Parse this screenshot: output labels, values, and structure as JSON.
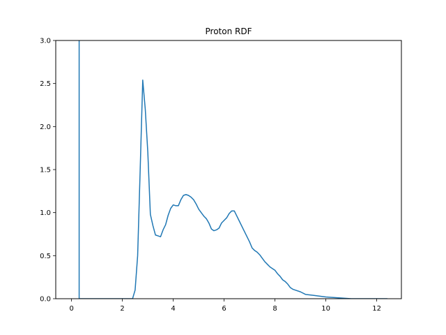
{
  "chart_data": {
    "type": "line",
    "title": "Proton RDF",
    "xlabel": "",
    "ylabel": "",
    "xlim": [
      -0.62,
      12.97
    ],
    "ylim": [
      0,
      3.0
    ],
    "xticks": [
      0,
      2,
      4,
      6,
      8,
      10,
      12
    ],
    "yticks": [
      0.0,
      0.5,
      1.0,
      1.5,
      2.0,
      2.5,
      3.0
    ],
    "xtick_labels": [
      "0",
      "2",
      "4",
      "6",
      "8",
      "10",
      "12"
    ],
    "ytick_labels": [
      "0.0",
      "0.5",
      "1.0",
      "1.5",
      "2.0",
      "2.5",
      "3.0"
    ],
    "grid": false,
    "series": [
      {
        "color": "#1f77b4",
        "x": [
          0.3,
          0.3,
          0.3,
          0.5,
          1.0,
          1.5,
          2.0,
          2.2,
          2.3,
          2.4,
          2.5,
          2.6,
          2.7,
          2.8,
          2.9,
          3.0,
          3.1,
          3.2,
          3.3,
          3.4,
          3.5,
          3.6,
          3.7,
          3.8,
          3.9,
          4.0,
          4.1,
          4.2,
          4.3,
          4.4,
          4.5,
          4.6,
          4.7,
          4.8,
          4.9,
          5.0,
          5.1,
          5.2,
          5.3,
          5.4,
          5.5,
          5.6,
          5.7,
          5.8,
          5.9,
          6.0,
          6.1,
          6.2,
          6.3,
          6.4,
          6.5,
          6.6,
          6.7,
          6.8,
          6.9,
          7.0,
          7.1,
          7.2,
          7.3,
          7.4,
          7.5,
          7.6,
          7.7,
          7.8,
          7.9,
          8.0,
          8.1,
          8.2,
          8.3,
          8.4,
          8.5,
          8.6,
          8.7,
          8.8,
          9.0,
          9.2,
          9.5,
          10.0,
          10.5,
          11.0,
          11.5,
          12.0,
          12.4
        ],
        "y": [
          3.0,
          0.0,
          0.0,
          0.0,
          0.0,
          0.0,
          0.0,
          0.0,
          0.0,
          0.0,
          0.1,
          0.5,
          1.5,
          2.54,
          2.2,
          1.7,
          0.98,
          0.85,
          0.74,
          0.73,
          0.72,
          0.8,
          0.86,
          0.97,
          1.05,
          1.09,
          1.08,
          1.08,
          1.15,
          1.2,
          1.21,
          1.2,
          1.18,
          1.15,
          1.1,
          1.04,
          1.0,
          0.96,
          0.93,
          0.88,
          0.81,
          0.79,
          0.8,
          0.82,
          0.88,
          0.91,
          0.94,
          0.99,
          1.02,
          1.02,
          0.96,
          0.9,
          0.84,
          0.78,
          0.72,
          0.66,
          0.59,
          0.56,
          0.54,
          0.51,
          0.47,
          0.43,
          0.4,
          0.37,
          0.35,
          0.33,
          0.29,
          0.26,
          0.22,
          0.2,
          0.17,
          0.13,
          0.11,
          0.1,
          0.08,
          0.05,
          0.04,
          0.02,
          0.01,
          0.0,
          0.0,
          0.0,
          0.0
        ]
      }
    ]
  }
}
